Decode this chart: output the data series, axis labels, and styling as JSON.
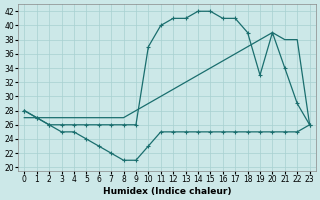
{
  "xlabel": "Humidex (Indice chaleur)",
  "xlim": [
    -0.5,
    23.5
  ],
  "ylim": [
    19.5,
    43
  ],
  "yticks": [
    20,
    22,
    24,
    26,
    28,
    30,
    32,
    34,
    36,
    38,
    40,
    42
  ],
  "xticks": [
    0,
    1,
    2,
    3,
    4,
    5,
    6,
    7,
    8,
    9,
    10,
    11,
    12,
    13,
    14,
    15,
    16,
    17,
    18,
    19,
    20,
    21,
    22,
    23
  ],
  "bg_color": "#cce8e8",
  "line_color": "#1a6e6e",
  "line_main_x": [
    0,
    1,
    2,
    3,
    4,
    5,
    6,
    7,
    8,
    9,
    10,
    11,
    12,
    13,
    14,
    15,
    16,
    17,
    18,
    19,
    20,
    21,
    22,
    23
  ],
  "line_main_y": [
    28,
    27,
    26,
    26,
    26,
    26,
    26,
    26,
    26,
    26,
    37,
    40,
    41,
    41,
    42,
    42,
    41,
    41,
    39,
    33,
    39,
    34,
    29,
    26
  ],
  "line_diag_x": [
    0,
    1,
    2,
    3,
    4,
    5,
    6,
    7,
    8,
    9,
    10,
    11,
    12,
    13,
    14,
    15,
    16,
    17,
    18,
    19,
    20,
    21,
    22,
    23
  ],
  "line_diag_y": [
    27,
    27,
    27,
    27,
    27,
    27,
    27,
    27,
    27,
    28,
    29,
    30,
    31,
    32,
    33,
    34,
    35,
    36,
    37,
    38,
    39,
    38,
    38,
    26
  ],
  "line_low_x": [
    0,
    1,
    2,
    3,
    4,
    5,
    6,
    7,
    8,
    9,
    10,
    11,
    12,
    13,
    14,
    15,
    16,
    17,
    18,
    19,
    20,
    21,
    22,
    23
  ],
  "line_low_y": [
    28,
    27,
    26,
    25,
    25,
    24,
    23,
    22,
    21,
    21,
    23,
    25,
    25,
    25,
    25,
    25,
    25,
    25,
    25,
    25,
    25,
    25,
    25,
    26
  ]
}
